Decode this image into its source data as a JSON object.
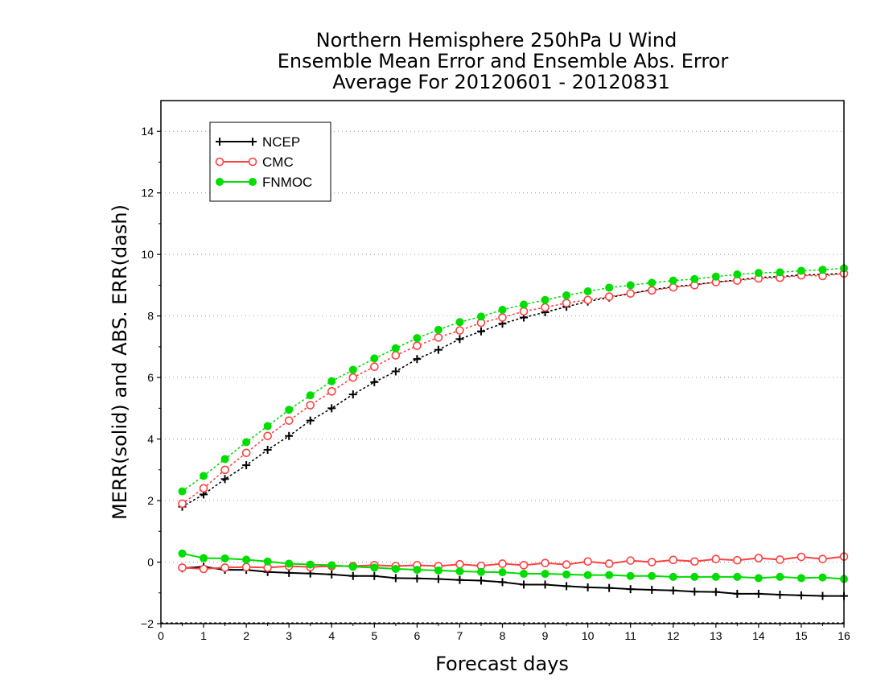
{
  "chart_data": {
    "type": "line",
    "title": [
      "Northern Hemisphere 250hPa U Wind",
      "Ensemble Mean Error and Ensemble Abs. Error",
      "Average For 20120601 - 20120831"
    ],
    "xlabel": "Forecast days",
    "ylabel": "MERR(solid) and ABS. ERR(dash)",
    "xlim": [
      0,
      16
    ],
    "ylim": [
      -2,
      15
    ],
    "xticks": [
      0,
      1,
      2,
      3,
      4,
      5,
      6,
      7,
      8,
      9,
      10,
      11,
      12,
      13,
      14,
      15,
      16
    ],
    "xtick_labels": [
      "0",
      "1",
      "2",
      "3",
      "4",
      "5",
      "6",
      "7",
      "8",
      "9",
      "10",
      "11",
      "12",
      "13",
      "14",
      "15",
      "16"
    ],
    "yticks": [
      -2,
      0,
      2,
      4,
      6,
      8,
      10,
      12,
      14
    ],
    "ytick_labels": [
      "−2",
      "0",
      "2",
      "4",
      "6",
      "8",
      "10",
      "12",
      "14"
    ],
    "grid": "horizontal dotted",
    "legend_position": "top-left",
    "x": [
      0.5,
      1.0,
      1.5,
      2.0,
      2.5,
      3.0,
      3.5,
      4.0,
      4.5,
      5.0,
      5.5,
      6.0,
      6.5,
      7.0,
      7.5,
      8.0,
      8.5,
      9.0,
      9.5,
      10.0,
      10.5,
      11.0,
      11.5,
      12.0,
      12.5,
      13.0,
      13.5,
      14.0,
      14.5,
      15.0,
      15.5,
      16.0
    ],
    "series": [
      {
        "name": "NCEP",
        "color": "#000000",
        "marker": "plus",
        "mean_error": [
          -0.2,
          -0.15,
          -0.25,
          -0.25,
          -0.32,
          -0.35,
          -0.37,
          -0.4,
          -0.45,
          -0.45,
          -0.52,
          -0.53,
          -0.55,
          -0.58,
          -0.6,
          -0.65,
          -0.73,
          -0.73,
          -0.78,
          -0.82,
          -0.84,
          -0.88,
          -0.9,
          -0.92,
          -0.96,
          -0.97,
          -1.03,
          -1.03,
          -1.06,
          -1.08,
          -1.1,
          -1.1
        ],
        "abs_error": [
          1.8,
          2.2,
          2.7,
          3.15,
          3.65,
          4.1,
          4.6,
          5.0,
          5.45,
          5.85,
          6.2,
          6.6,
          6.9,
          7.25,
          7.5,
          7.75,
          7.95,
          8.12,
          8.3,
          8.47,
          8.6,
          8.73,
          8.85,
          8.95,
          9.02,
          9.1,
          9.17,
          9.25,
          9.28,
          9.33,
          9.35,
          9.38
        ]
      },
      {
        "name": "CMC",
        "color": "#ff4040",
        "marker": "open-circle",
        "mean_error": [
          -0.18,
          -0.22,
          -0.18,
          -0.16,
          -0.18,
          -0.13,
          -0.16,
          -0.13,
          -0.13,
          -0.1,
          -0.13,
          -0.1,
          -0.13,
          -0.07,
          -0.12,
          -0.05,
          -0.1,
          -0.03,
          -0.08,
          0.02,
          -0.05,
          0.05,
          0.0,
          0.07,
          0.02,
          0.1,
          0.06,
          0.13,
          0.08,
          0.17,
          0.1,
          0.18
        ],
        "abs_error": [
          1.9,
          2.4,
          3.0,
          3.55,
          4.1,
          4.6,
          5.1,
          5.55,
          6.0,
          6.35,
          6.72,
          7.03,
          7.3,
          7.53,
          7.78,
          7.95,
          8.15,
          8.28,
          8.42,
          8.52,
          8.63,
          8.73,
          8.83,
          8.93,
          9.0,
          9.1,
          9.15,
          9.22,
          9.24,
          9.32,
          9.3,
          9.38
        ]
      },
      {
        "name": "FNMOC",
        "color": "#00dd00",
        "marker": "filled-circle",
        "mean_error": [
          0.28,
          0.13,
          0.12,
          0.08,
          0.02,
          -0.05,
          -0.08,
          -0.1,
          -0.15,
          -0.18,
          -0.22,
          -0.25,
          -0.27,
          -0.3,
          -0.32,
          -0.33,
          -0.38,
          -0.38,
          -0.4,
          -0.42,
          -0.42,
          -0.45,
          -0.45,
          -0.48,
          -0.48,
          -0.48,
          -0.48,
          -0.52,
          -0.48,
          -0.52,
          -0.5,
          -0.55
        ],
        "abs_error": [
          2.3,
          2.8,
          3.35,
          3.9,
          4.42,
          4.95,
          5.42,
          5.88,
          6.25,
          6.62,
          6.95,
          7.28,
          7.55,
          7.8,
          7.98,
          8.2,
          8.37,
          8.52,
          8.67,
          8.8,
          8.92,
          9.0,
          9.08,
          9.15,
          9.2,
          9.28,
          9.35,
          9.4,
          9.42,
          9.47,
          9.5,
          9.55
        ]
      }
    ]
  }
}
